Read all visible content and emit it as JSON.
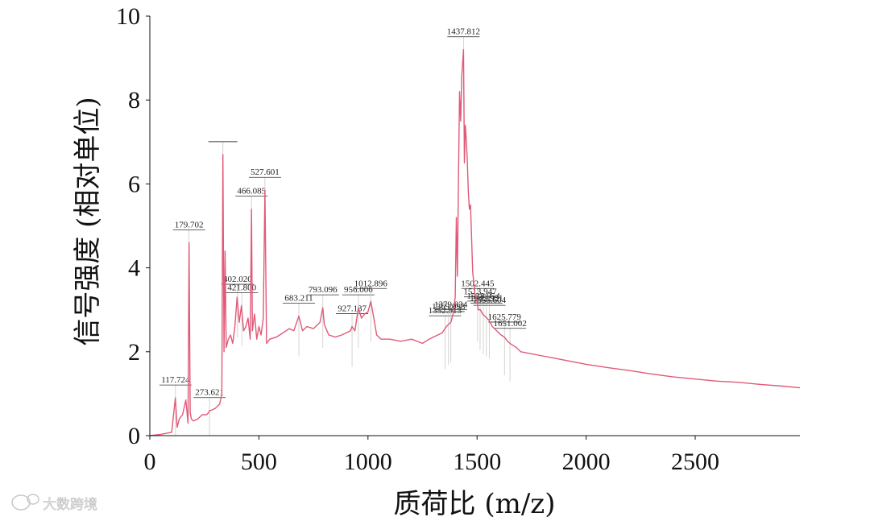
{
  "chart_data": {
    "type": "line",
    "xlabel": "质荷比 (m/z)",
    "ylabel": "信号强度 (相对单位)",
    "xlim": [
      0,
      2980
    ],
    "ylim": [
      0,
      10
    ],
    "x_ticks": [
      "0",
      "500",
      "1000",
      "1500",
      "2000",
      "2500"
    ],
    "y_ticks": [
      "0",
      "2",
      "4",
      "6",
      "8",
      "10"
    ],
    "grid": false,
    "line_color": "#e05a78",
    "peak_annotations": [
      {
        "label": "117.724",
        "x": 117.7,
        "y": 0.9
      },
      {
        "label": "179.702",
        "x": 179.7,
        "y": 4.6
      },
      {
        "label": "273.621",
        "x": 273.6,
        "y": 0.6
      },
      {
        "label": "",
        "x": 335,
        "y": 6.7
      },
      {
        "label": "402.020",
        "x": 402.0,
        "y": 3.3
      },
      {
        "label": "421.800",
        "x": 421.8,
        "y": 3.1
      },
      {
        "label": "466.085",
        "x": 466.1,
        "y": 5.4
      },
      {
        "label": "527.601",
        "x": 527.6,
        "y": 5.85
      },
      {
        "label": "683.211",
        "x": 683.2,
        "y": 2.85
      },
      {
        "label": "793.096",
        "x": 793.1,
        "y": 3.05
      },
      {
        "label": "927.137",
        "x": 927.1,
        "y": 2.6
      },
      {
        "label": "956.006",
        "x": 956.0,
        "y": 3.05
      },
      {
        "label": "1012.896",
        "x": 1012.9,
        "y": 3.2
      },
      {
        "label": "1352.913",
        "x": 1352.9,
        "y": 2.55
      },
      {
        "label": "1369.098",
        "x": 1369.1,
        "y": 2.65
      },
      {
        "label": "1379.834",
        "x": 1379.8,
        "y": 2.7
      },
      {
        "label": "1437.812",
        "x": 1437.8,
        "y": 9.2
      },
      {
        "label": "1502.445",
        "x": 1502.4,
        "y": 3.2
      },
      {
        "label": "1513.947",
        "x": 1513.9,
        "y": 3.0
      },
      {
        "label": "1528.954",
        "x": 1529.0,
        "y": 2.9
      },
      {
        "label": "1542.931",
        "x": 1542.9,
        "y": 2.85
      },
      {
        "label": "1556.604",
        "x": 1556.6,
        "y": 2.8
      },
      {
        "label": "1625.779",
        "x": 1625.8,
        "y": 2.4
      },
      {
        "label": "1651.002",
        "x": 1651.0,
        "y": 2.25
      }
    ],
    "series": [
      {
        "x": [
          0,
          50,
          100,
          117,
          125,
          135,
          150,
          165,
          175,
          179.7,
          185,
          190,
          200,
          220,
          240,
          260,
          270,
          273.6,
          280,
          300,
          320,
          330,
          335,
          340,
          345,
          350,
          360,
          370,
          380,
          390,
          400,
          410,
          420,
          430,
          440,
          450,
          460,
          466,
          470,
          480,
          490,
          500,
          510,
          520,
          527.6,
          535,
          550,
          580,
          610,
          640,
          660,
          683,
          700,
          720,
          750,
          770,
          780,
          793,
          800,
          820,
          850,
          880,
          900,
          920,
          927,
          940,
          956,
          970,
          985,
          1000,
          1012.9,
          1025,
          1040,
          1060,
          1100,
          1150,
          1200,
          1250,
          1280,
          1300,
          1320,
          1340,
          1352.9,
          1360,
          1369,
          1380,
          1390,
          1400,
          1405,
          1410,
          1415,
          1420,
          1425,
          1430,
          1437.8,
          1442,
          1446,
          1450,
          1455,
          1460,
          1465,
          1470,
          1480,
          1490,
          1500,
          1505,
          1515,
          1525,
          1535,
          1545,
          1555,
          1570,
          1590,
          1610,
          1625,
          1640,
          1651,
          1680,
          1700,
          1750,
          1800,
          1850,
          1900,
          1950,
          2000,
          2100,
          2200,
          2300,
          2400,
          2500,
          2600,
          2700,
          2800,
          2900,
          2980
        ],
        "values": [
          0.0,
          0.03,
          0.08,
          0.9,
          0.2,
          0.4,
          0.5,
          0.85,
          0.3,
          4.6,
          0.55,
          0.4,
          0.35,
          0.4,
          0.5,
          0.5,
          0.55,
          0.6,
          0.6,
          0.65,
          0.75,
          1.0,
          6.7,
          2.0,
          4.4,
          2.1,
          2.3,
          2.4,
          2.2,
          2.6,
          3.3,
          2.7,
          3.1,
          2.5,
          2.6,
          2.8,
          2.3,
          5.4,
          2.5,
          2.9,
          2.3,
          2.6,
          2.4,
          2.8,
          5.85,
          2.2,
          2.3,
          2.35,
          2.45,
          2.55,
          2.5,
          2.85,
          2.5,
          2.6,
          2.55,
          2.65,
          2.7,
          3.05,
          2.65,
          2.4,
          2.35,
          2.4,
          2.45,
          2.5,
          2.6,
          2.5,
          3.05,
          2.8,
          2.9,
          2.95,
          3.2,
          2.85,
          2.4,
          2.3,
          2.3,
          2.25,
          2.3,
          2.2,
          2.3,
          2.35,
          2.4,
          2.45,
          2.55,
          2.6,
          2.65,
          2.7,
          2.9,
          3.3,
          5.2,
          3.8,
          6.2,
          8.2,
          7.5,
          8.6,
          9.2,
          6.5,
          7.4,
          7.1,
          6.6,
          5.8,
          5.4,
          5.5,
          3.9,
          3.4,
          3.2,
          3.0,
          3.0,
          2.9,
          2.85,
          2.8,
          2.75,
          2.6,
          2.5,
          2.4,
          2.35,
          2.25,
          2.2,
          2.1,
          2.0,
          1.95,
          1.9,
          1.85,
          1.8,
          1.75,
          1.7,
          1.62,
          1.55,
          1.47,
          1.4,
          1.35,
          1.3,
          1.27,
          1.22,
          1.18,
          1.14
        ]
      }
    ]
  },
  "watermark": {
    "text": "大数跨境",
    "icon": "chat-bubble-icon"
  }
}
